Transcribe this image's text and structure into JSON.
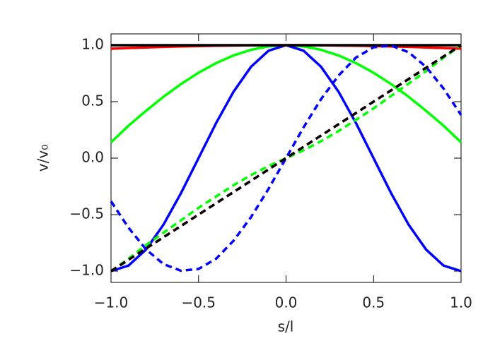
{
  "chart_data": {
    "type": "line",
    "xlabel": "s/l",
    "ylabel": "v/v₀",
    "x": [
      -1.0,
      -0.9,
      -0.8,
      -0.7,
      -0.6,
      -0.5,
      -0.4,
      -0.3,
      -0.2,
      -0.1,
      0.0,
      0.1,
      0.2,
      0.3,
      0.4,
      0.5,
      0.6,
      0.7,
      0.8,
      0.9,
      1.0
    ],
    "series": [
      {
        "color": "#00ff00",
        "dashed": false,
        "values": [
          0.14,
          0.287,
          0.419,
          0.544,
          0.656,
          0.756,
          0.841,
          0.909,
          0.959,
          0.99,
          1.0,
          0.99,
          0.959,
          0.909,
          0.841,
          0.756,
          0.656,
          0.544,
          0.419,
          0.287,
          0.14
        ]
      },
      {
        "color": "#0000ff",
        "dashed": false,
        "values": [
          -1.0,
          -0.951,
          -0.809,
          -0.588,
          -0.309,
          0.0,
          0.309,
          0.588,
          0.809,
          0.951,
          1.0,
          0.951,
          0.809,
          0.588,
          0.309,
          0.0,
          -0.309,
          -0.588,
          -0.809,
          -0.951,
          -1.0
        ]
      },
      {
        "color": "#ff0000",
        "dashed": false,
        "values": [
          0.969,
          0.975,
          0.98,
          0.985,
          0.989,
          0.992,
          0.995,
          0.997,
          0.999,
          1.0,
          1.0,
          1.0,
          0.999,
          0.997,
          0.995,
          0.992,
          0.989,
          0.985,
          0.98,
          0.975,
          0.969
        ]
      },
      {
        "color": "#000000",
        "dashed": false,
        "values": [
          1.0,
          1.0,
          1.0,
          1.0,
          1.0,
          1.0,
          1.0,
          1.0,
          1.0,
          1.0,
          1.0,
          1.0,
          1.0,
          1.0,
          1.0,
          1.0,
          1.0,
          1.0,
          1.0,
          1.0,
          1.0
        ]
      },
      {
        "color": "#00ff00",
        "dashed": true,
        "values": [
          -1.0,
          -0.89,
          -0.77,
          -0.66,
          -0.55,
          -0.44,
          -0.34,
          -0.24,
          -0.15,
          -0.07,
          0.0,
          0.07,
          0.15,
          0.24,
          0.34,
          0.44,
          0.55,
          0.66,
          0.77,
          0.89,
          1.0
        ]
      },
      {
        "color": "#0000ff",
        "dashed": true,
        "values": [
          -0.382,
          -0.616,
          -0.808,
          -0.938,
          -0.997,
          -0.981,
          -0.891,
          -0.731,
          -0.522,
          -0.272,
          0.0,
          0.272,
          0.522,
          0.731,
          0.891,
          0.981,
          0.997,
          0.938,
          0.808,
          0.616,
          0.382
        ]
      },
      {
        "color": "#ff0000",
        "dashed": true,
        "values": [
          -1.0,
          -0.9,
          -0.8,
          -0.7,
          -0.6,
          -0.5,
          -0.4,
          -0.3,
          -0.2,
          -0.1,
          0.0,
          0.1,
          0.2,
          0.3,
          0.4,
          0.5,
          0.6,
          0.7,
          0.8,
          0.9,
          1.0
        ]
      },
      {
        "color": "#000000",
        "dashed": true,
        "values": [
          -1.0,
          -0.9,
          -0.8,
          -0.7,
          -0.6,
          -0.5,
          -0.4,
          -0.3,
          -0.2,
          -0.1,
          0.0,
          0.1,
          0.2,
          0.3,
          0.4,
          0.5,
          0.6,
          0.7,
          0.8,
          0.9,
          1.0
        ]
      }
    ],
    "xlim": [
      -1.0,
      1.0
    ],
    "ylim": [
      -1.1,
      1.1
    ],
    "xticks": [
      {
        "value": -1.0,
        "label": "−1.0"
      },
      {
        "value": -0.5,
        "label": "−0.5"
      },
      {
        "value": 0.0,
        "label": "0.0"
      },
      {
        "value": 0.5,
        "label": "0.5"
      },
      {
        "value": 1.0,
        "label": "1.0"
      }
    ],
    "yticks": [
      {
        "value": -1.0,
        "label": "−1.0"
      },
      {
        "value": -0.5,
        "label": "−0.5"
      },
      {
        "value": 0.0,
        "label": "0.0"
      },
      {
        "value": 0.5,
        "label": "0.5"
      },
      {
        "value": 1.0,
        "label": "1.0"
      }
    ]
  }
}
